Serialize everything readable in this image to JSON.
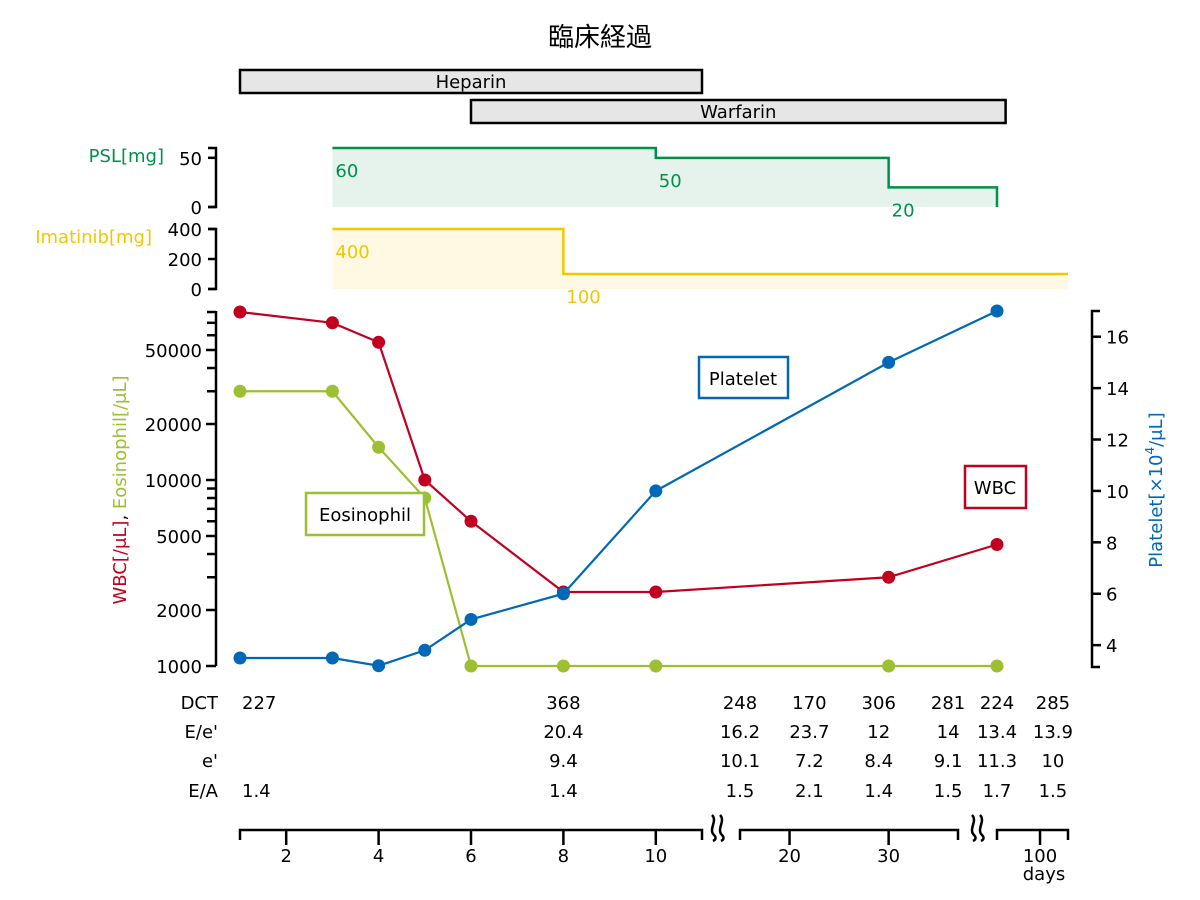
{
  "chart_data": {
    "type": "line",
    "title": "臨床経過",
    "x_axis": {
      "unit_label": "days",
      "broken": true,
      "segments": [
        [
          1,
          11
        ],
        [
          15,
          37
        ],
        [
          90,
          106.5
        ]
      ],
      "ticks": [
        2,
        4,
        6,
        8,
        10,
        20,
        30,
        100
      ]
    },
    "left_axis": {
      "label_parts": [
        {
          "text": "WBC[/μL]",
          "color": "#c0001e"
        },
        {
          "text": ", ",
          "color": "#000000"
        },
        {
          "text": "Eosinophil[/μL]",
          "color": "#9cc031"
        }
      ],
      "scale": "log",
      "ylim": [
        1000,
        80000
      ],
      "ticks": [
        1000,
        2000,
        5000,
        10000,
        20000,
        50000
      ],
      "minor_ticks": [
        3000,
        4000,
        6000,
        7000,
        8000,
        9000,
        30000,
        40000,
        60000,
        70000,
        80000
      ]
    },
    "right_axis": {
      "label": "Platelet[×10",
      "label_sup": "4",
      "label_end": "/μL]",
      "color": "#0068b7",
      "ylim": [
        3.15,
        17
      ],
      "ticks": [
        4,
        6,
        8,
        10,
        12,
        14,
        16
      ]
    },
    "series": [
      {
        "name": "WBC",
        "axis": "left",
        "color": "#c0001e",
        "x": [
          1,
          3,
          4,
          5,
          6,
          8,
          10,
          30,
          90
        ],
        "y": [
          80000,
          70000,
          55000,
          10000,
          6000,
          2500,
          2500,
          3000,
          4500
        ]
      },
      {
        "name": "Eosinophil",
        "axis": "left",
        "color": "#9cc031",
        "x": [
          1,
          3,
          4,
          5,
          6,
          8,
          10,
          30,
          90
        ],
        "y": [
          30000,
          30000,
          15000,
          8000,
          1000,
          1000,
          1000,
          1000,
          1000
        ]
      },
      {
        "name": "Platelet",
        "axis": "right",
        "color": "#0068b7",
        "x": [
          1,
          3,
          4,
          5,
          6,
          8,
          10,
          30,
          90
        ],
        "y": [
          3.5,
          3.5,
          3.2,
          3.8,
          5.0,
          6.0,
          10.0,
          15.0,
          17.0
        ]
      }
    ],
    "drug_bars": [
      {
        "name": "Heparin",
        "start": 1,
        "end": 11
      },
      {
        "name": "Warfarin",
        "start": 6,
        "end": 92
      }
    ],
    "dose_panels": [
      {
        "label": "PSL[mg]",
        "color": "#00904a",
        "fill": "#e5f3ec",
        "ylim": [
          0,
          60
        ],
        "ticks": [
          0,
          50
        ],
        "steps": [
          {
            "start": 3,
            "end": 10,
            "dose": 60
          },
          {
            "start": 10,
            "end": 30,
            "dose": 50
          },
          {
            "start": 30,
            "end": 90,
            "dose": 20
          }
        ],
        "drops_to_zero_at_end": true
      },
      {
        "label": "Imatinib[mg]",
        "color": "#f0c800",
        "fill": "#fff8e3",
        "ylim": [
          0,
          400
        ],
        "ticks": [
          0,
          200,
          400
        ],
        "steps": [
          {
            "start": 3,
            "end": 8,
            "dose": 400
          },
          {
            "start": 8,
            "end": 106.5,
            "dose": 100
          }
        ],
        "drops_to_zero_at_end": false
      }
    ],
    "table": {
      "columns_day": [
        1,
        8,
        15,
        22,
        29,
        36,
        90,
        103
      ],
      "rows": [
        {
          "label": "DCT",
          "values": [
            "227",
            "368",
            "248",
            "170",
            "306",
            "281",
            "224",
            "285"
          ]
        },
        {
          "label": "E/e'",
          "values": [
            "",
            "20.4",
            "16.2",
            "23.7",
            "12",
            "14",
            "13.4",
            "13.9"
          ]
        },
        {
          "label": "e'",
          "values": [
            "",
            "9.4",
            "10.1",
            "7.2",
            "8.4",
            "9.1",
            "11.3",
            "10"
          ]
        },
        {
          "label": "E/A",
          "values": [
            "1.4",
            "1.4",
            "1.5",
            "2.1",
            "1.4",
            "1.5",
            "1.7",
            "1.5"
          ]
        }
      ]
    },
    "legend": {
      "placement": "inline-labels",
      "labels": [
        "Platelet",
        "WBC",
        "Eosinophil"
      ]
    }
  }
}
